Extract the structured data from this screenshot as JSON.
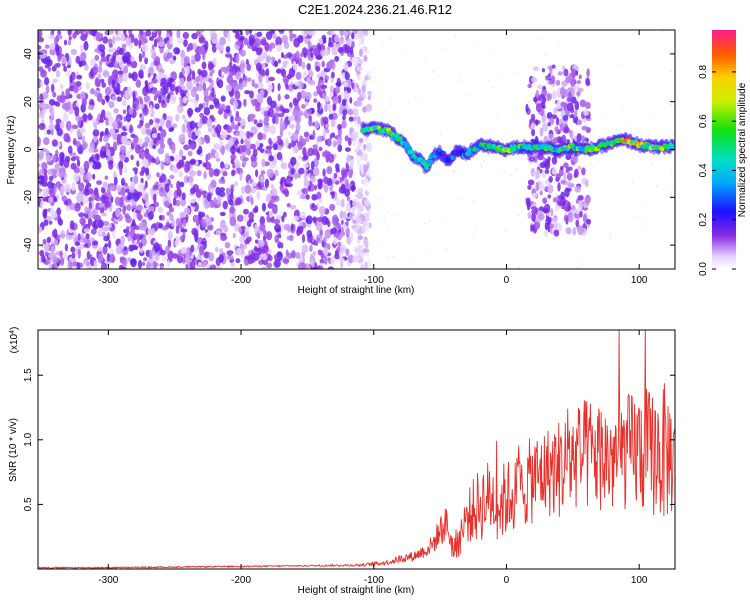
{
  "title": "C2E1.2024.236.21.46.R12",
  "chart_data": [
    {
      "type": "heatmap",
      "xlabel": "Height of straight line (km)",
      "ylabel": "Frequency (Hz)",
      "xlim": [
        -353,
        127
      ],
      "ylim": [
        -50,
        50
      ],
      "xticks": [
        -300,
        -200,
        -100,
        0,
        100
      ],
      "yticks": [
        -40,
        -20,
        0,
        20,
        40
      ],
      "colorbar": {
        "label": "Normalized spectral amplitude",
        "range": [
          0.0,
          0.97
        ],
        "ticks": [
          0.0,
          0.2,
          0.4,
          0.6,
          0.8
        ],
        "tick_labels": [
          "0.0",
          "0.2",
          "0.4",
          "0.6",
          "0.8"
        ]
      },
      "regions": [
        {
          "name": "noise-wide",
          "x": [
            -353,
            -103
          ],
          "y": [
            -50,
            50
          ],
          "level": 0.12
        },
        {
          "name": "noise-patch",
          "x": [
            15,
            62
          ],
          "y": [
            -35,
            35
          ],
          "level": 0.1
        }
      ],
      "trace": {
        "x": [
          -108,
          -100,
          -90,
          -82,
          -76,
          -70,
          -64,
          -60,
          -56,
          -50,
          -44,
          -38,
          -30,
          -20,
          -10,
          0,
          10,
          20,
          30,
          40,
          50,
          60,
          70,
          80,
          90,
          100,
          110,
          120,
          126
        ],
        "y": [
          8,
          9,
          8,
          5,
          2,
          -3,
          -5,
          -8,
          -3,
          -1,
          -5,
          -1,
          -2,
          2,
          1,
          0,
          1,
          1,
          1,
          0,
          1,
          0,
          1,
          3,
          4,
          2,
          1,
          1,
          2
        ],
        "amplitude": [
          0.5,
          0.55,
          0.6,
          0.5,
          0.45,
          0.4,
          0.35,
          0.4,
          0.35,
          0.3,
          0.3,
          0.3,
          0.35,
          0.45,
          0.5,
          0.6,
          0.5,
          0.55,
          0.5,
          0.55,
          0.55,
          0.5,
          0.55,
          0.6,
          0.7,
          0.65,
          0.6,
          0.55,
          0.6
        ]
      }
    },
    {
      "type": "line",
      "xlabel": "Height of straight line (km)",
      "ylabel": "SNR (10 * v/v)",
      "exponent_label": "(x10",
      "exponent_power": "4",
      "exponent_close": ")",
      "xlim": [
        -353,
        127
      ],
      "ylim": [
        0,
        1.85
      ],
      "xticks": [
        -300,
        -200,
        -100,
        0,
        100
      ],
      "yticks": [
        0.5,
        1.0,
        1.5
      ],
      "ytick_labels": [
        "0.5",
        "1.0",
        "1.5"
      ],
      "series": [
        {
          "name": "SNR",
          "color": "#e8302b",
          "x": [
            -353,
            -300,
            -250,
            -200,
            -150,
            -110,
            -90,
            -80,
            -70,
            -60,
            -55,
            -50,
            -45,
            -40,
            -35,
            -30,
            -25,
            -20,
            -15,
            -10,
            -5,
            0,
            10,
            20,
            30,
            40,
            50,
            60,
            70,
            80,
            90,
            100,
            110,
            120,
            127
          ],
          "y": [
            0.01,
            0.01,
            0.015,
            0.02,
            0.025,
            0.03,
            0.05,
            0.08,
            0.1,
            0.15,
            0.2,
            0.3,
            0.35,
            0.15,
            0.25,
            0.4,
            0.45,
            0.5,
            0.55,
            0.55,
            0.5,
            0.55,
            0.6,
            0.7,
            0.75,
            0.78,
            0.85,
            0.88,
            0.88,
            0.85,
            0.9,
            0.92,
            0.9,
            0.9,
            0.88
          ],
          "spread": [
            0.005,
            0.005,
            0.005,
            0.005,
            0.005,
            0.01,
            0.02,
            0.03,
            0.04,
            0.06,
            0.08,
            0.12,
            0.15,
            0.1,
            0.15,
            0.2,
            0.25,
            0.3,
            0.3,
            0.3,
            0.3,
            0.3,
            0.3,
            0.35,
            0.35,
            0.4,
            0.4,
            0.45,
            0.45,
            0.45,
            0.45,
            0.5,
            0.5,
            0.55,
            0.45
          ]
        }
      ]
    }
  ]
}
